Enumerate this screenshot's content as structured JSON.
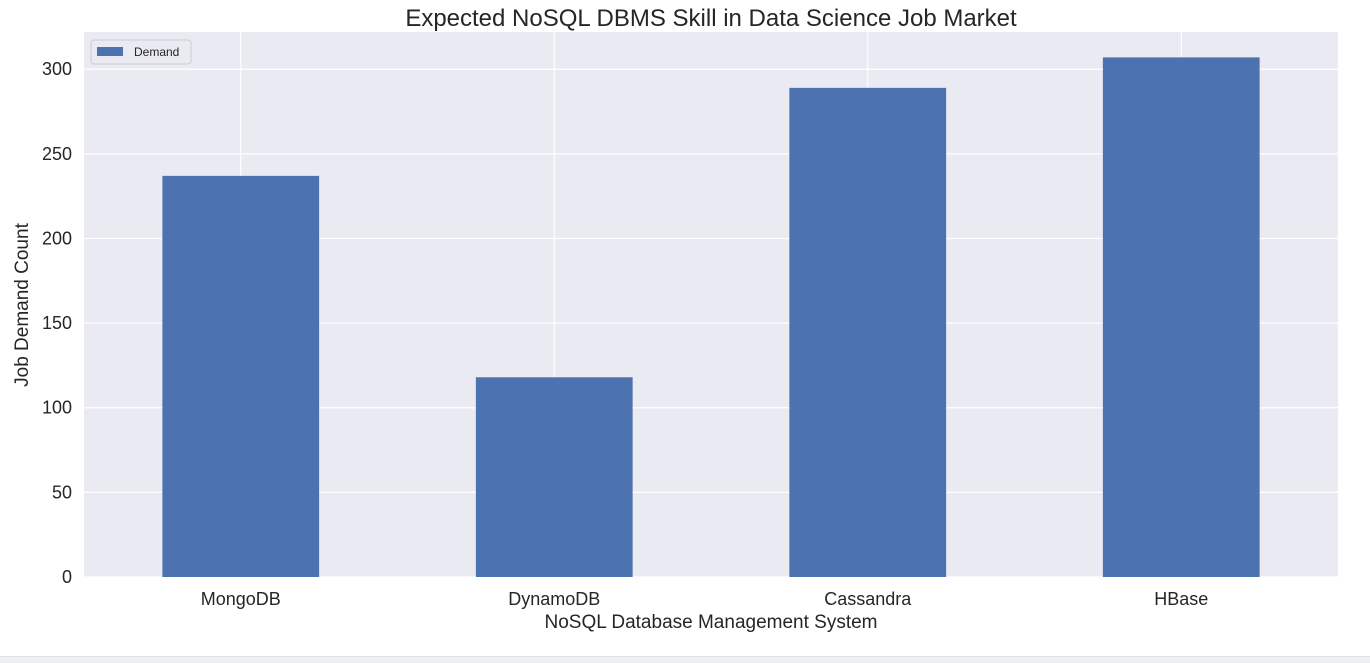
{
  "chart_data": {
    "type": "bar",
    "title": "Expected NoSQL DBMS Skill in Data Science Job Market",
    "xlabel": "NoSQL Database Management System",
    "ylabel": "Job Demand Count",
    "categories": [
      "MongoDB",
      "DynamoDB",
      "Cassandra",
      "HBase"
    ],
    "series": [
      {
        "name": "Demand",
        "values": [
          237,
          118,
          289,
          307
        ],
        "color": "#4c72b0"
      }
    ],
    "ylim": [
      0,
      322
    ],
    "yticks": [
      0,
      50,
      100,
      150,
      200,
      250,
      300
    ],
    "grid": true,
    "legend_position": "top-left",
    "style": {
      "plot_background": "#eaeaf2",
      "grid_color": "#ffffff"
    }
  }
}
